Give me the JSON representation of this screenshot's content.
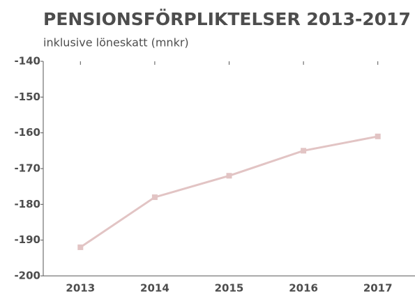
{
  "chart_data": {
    "type": "line",
    "title": "PENSIONSFÖRPLIKTELSER 2013-2017",
    "subtitle": "inklusive löneskatt (mnkr)",
    "categories": [
      "2013",
      "2014",
      "2015",
      "2016",
      "2017"
    ],
    "values": [
      -192,
      -178,
      -172,
      -165,
      -161
    ],
    "color": "#e2c4c4",
    "ylim": [
      -200,
      -140
    ],
    "yticks": [
      -140,
      -150,
      -160,
      -170,
      -180,
      -190,
      -200
    ],
    "grid": false
  }
}
